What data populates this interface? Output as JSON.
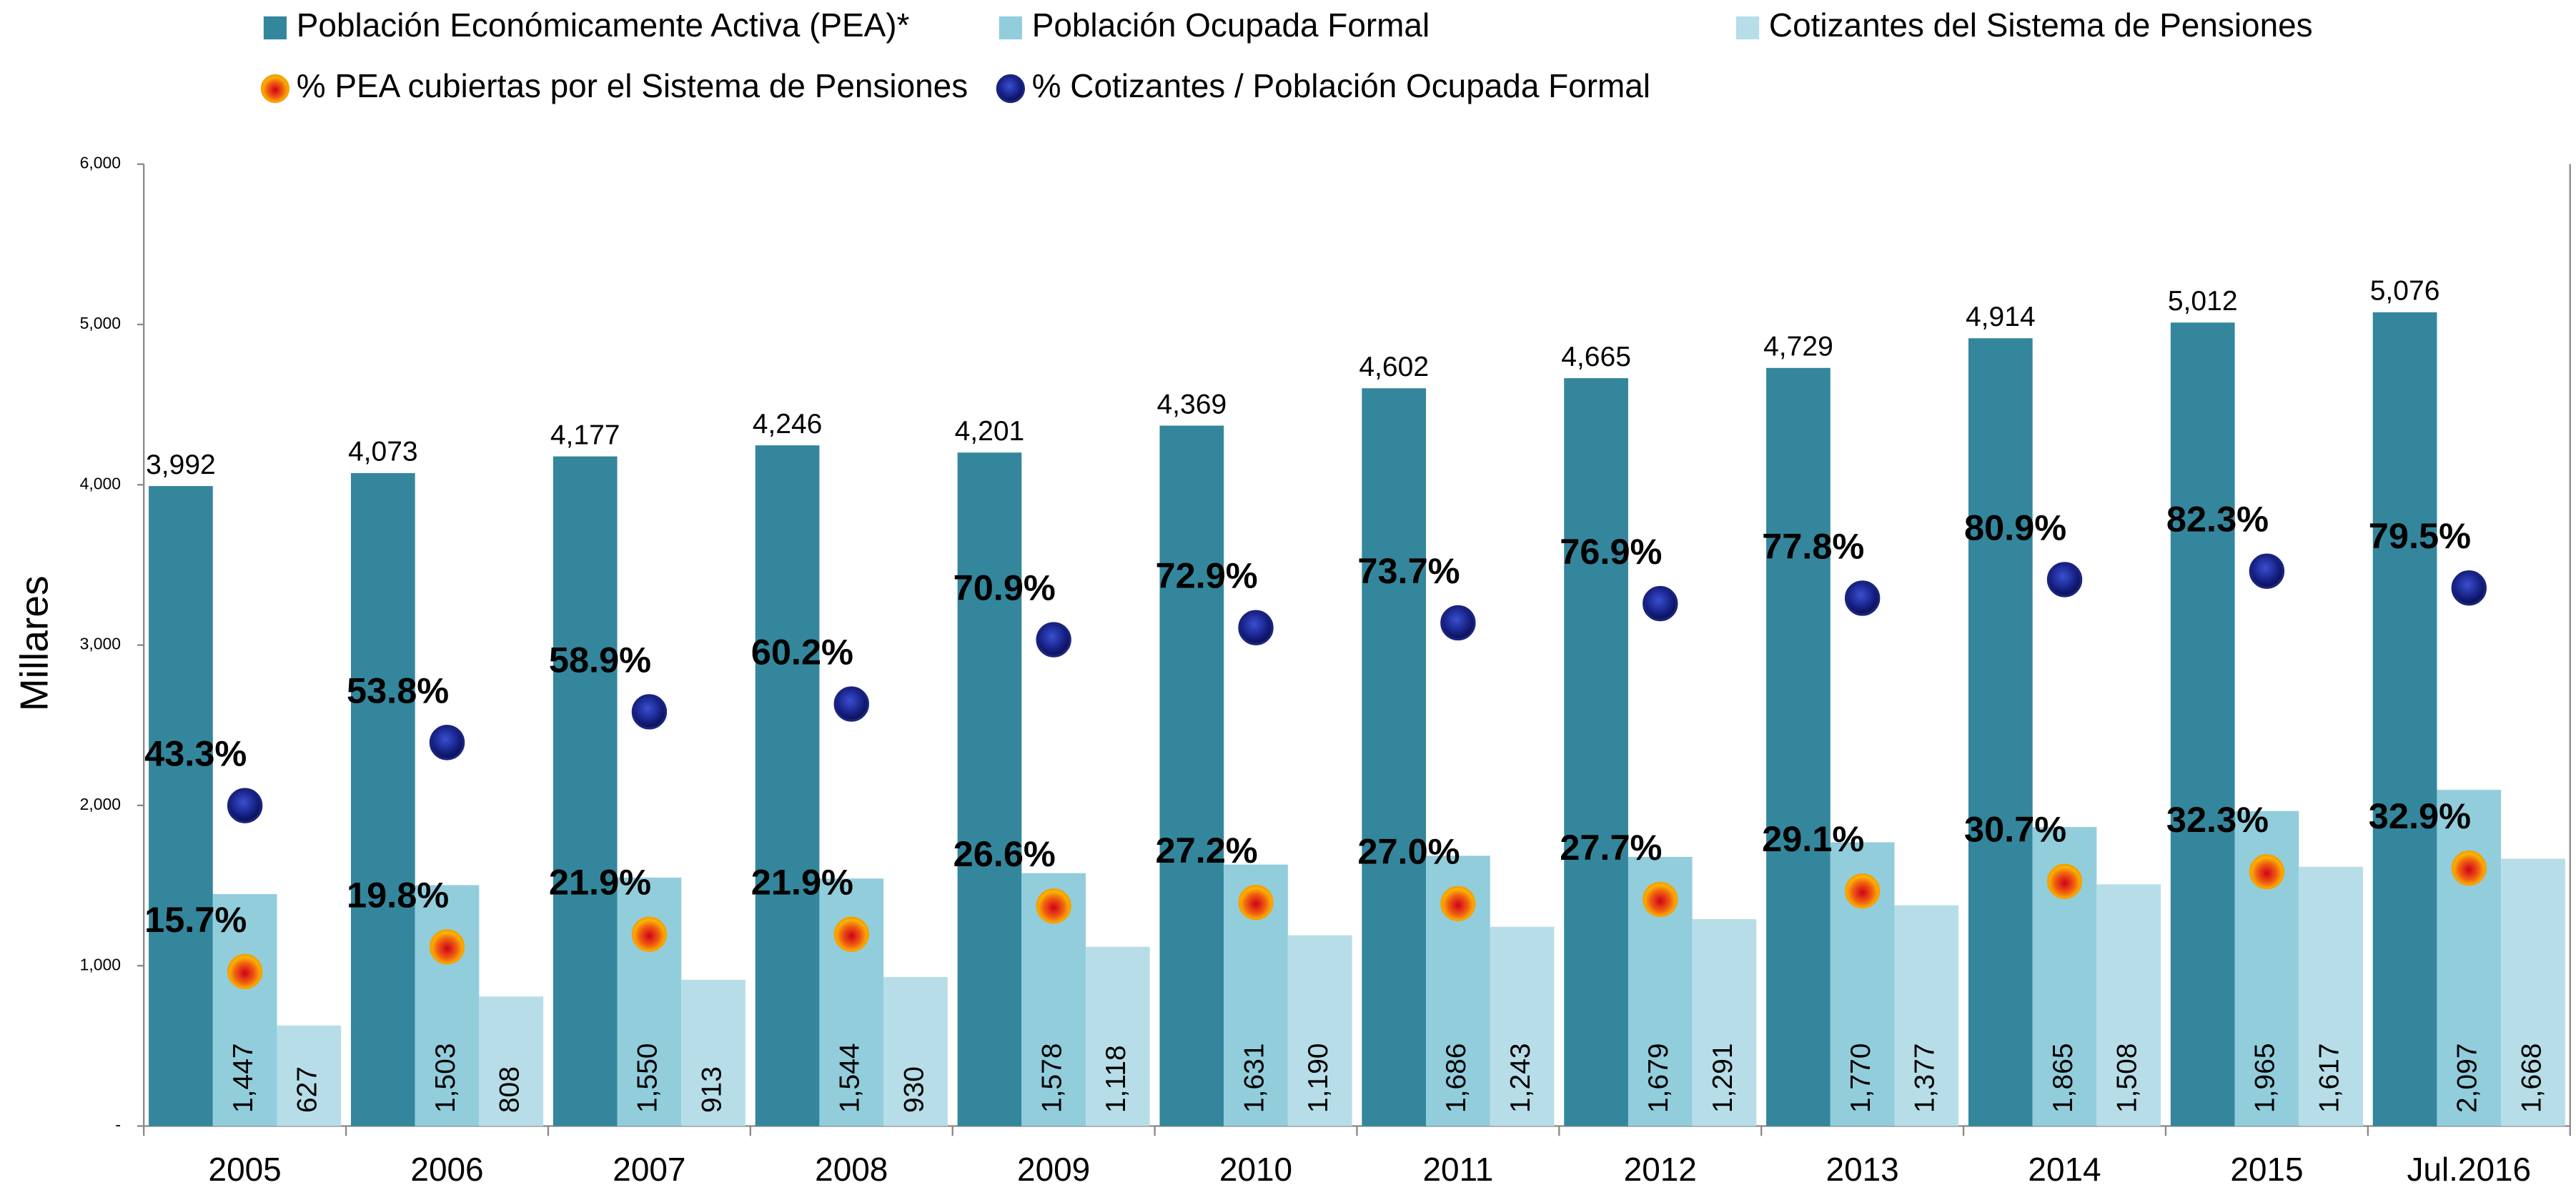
{
  "chart_data": {
    "type": "bar",
    "y_label": "Millares",
    "categories": [
      "2005",
      "2006",
      "2007",
      "2008",
      "2009",
      "2010",
      "2011",
      "2012",
      "2013",
      "2014",
      "2015",
      "Jul.2016"
    ],
    "ylim": [
      0,
      6000
    ],
    "yticks": [
      {
        "value": 0,
        "label": "-"
      },
      {
        "value": 1000,
        "label": "1,000"
      },
      {
        "value": 2000,
        "label": "2,000"
      },
      {
        "value": 3000,
        "label": "3,000"
      },
      {
        "value": 4000,
        "label": "4,000"
      },
      {
        "value": 5000,
        "label": "5,000"
      },
      {
        "value": 6000,
        "label": "6,000"
      }
    ],
    "y2lim": [
      -10,
      150
    ],
    "series": [
      {
        "name": "Población Económicamente Activa (PEA)*",
        "color": "#34869c",
        "values": [
          3992,
          4073,
          4177,
          4246,
          4201,
          4369,
          4602,
          4665,
          4729,
          4914,
          5012,
          5076
        ],
        "value_labels": [
          "3,992",
          "4,073",
          "4,177",
          "4,246",
          "4,201",
          "4,369",
          "4,602",
          "4,665",
          "4,729",
          "4,914",
          "5,012",
          "5,076"
        ]
      },
      {
        "name": "Población Ocupada Formal",
        "color": "#92cddc",
        "values": [
          1447,
          1503,
          1550,
          1544,
          1578,
          1631,
          1686,
          1679,
          1770,
          1865,
          1965,
          2097
        ],
        "value_labels": [
          "1,447",
          "1,503",
          "1,550",
          "1,544",
          "1,578",
          "1,631",
          "1,686",
          "1,679",
          "1,770",
          "1,865",
          "1,965",
          "2,097"
        ]
      },
      {
        "name": "Cotizantes del Sistema de Pensiones",
        "color": "#b7dee8",
        "values": [
          627,
          808,
          913,
          930,
          1118,
          1190,
          1243,
          1291,
          1377,
          1508,
          1617,
          1668
        ],
        "value_labels": [
          "627",
          "808",
          "913",
          "930",
          "1,118",
          "1,190",
          "1,243",
          "1,291",
          "1,377",
          "1,508",
          "1,617",
          "1,668"
        ]
      },
      {
        "name": "% PEA cubiertas por el Sistema de Pensiones",
        "color": "#f5a300",
        "axis": "y2",
        "values": [
          15.7,
          19.8,
          21.9,
          21.9,
          26.6,
          27.2,
          27.0,
          27.7,
          29.1,
          30.7,
          32.3,
          32.9
        ],
        "value_labels": [
          "15.7%",
          "19.8%",
          "21.9%",
          "21.9%",
          "26.6%",
          "27.2%",
          "27.0%",
          "27.7%",
          "29.1%",
          "30.7%",
          "32.3%",
          "32.9%"
        ]
      },
      {
        "name": "% Cotizantes / Población Ocupada Formal",
        "color": "#1a237e",
        "axis": "y2",
        "values": [
          43.3,
          53.8,
          58.9,
          60.2,
          70.9,
          72.9,
          73.7,
          76.9,
          77.8,
          80.9,
          82.3,
          79.5
        ],
        "value_labels": [
          "43.3%",
          "53.8%",
          "58.9%",
          "60.2%",
          "70.9%",
          "72.9%",
          "73.7%",
          "76.9%",
          "77.8%",
          "80.9%",
          "82.3%",
          "79.5%"
        ]
      }
    ]
  }
}
